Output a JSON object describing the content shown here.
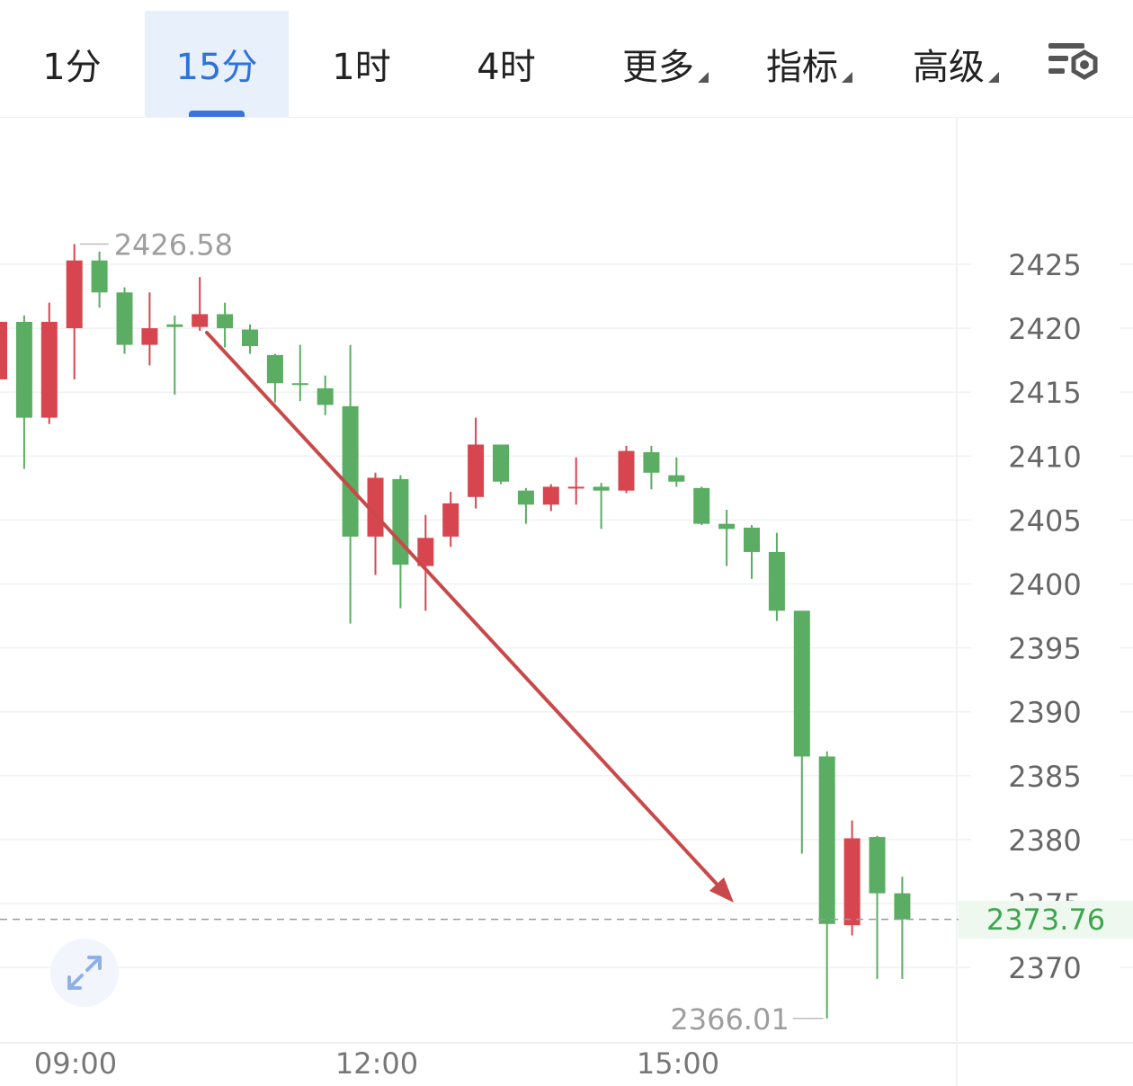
{
  "toolbar": {
    "tabs": [
      {
        "label": "1分"
      },
      {
        "label": "15分"
      },
      {
        "label": "1时"
      },
      {
        "label": "4时"
      },
      {
        "label": "更多"
      },
      {
        "label": "指标"
      },
      {
        "label": "高级"
      }
    ],
    "active_tab": "15分",
    "settings_icon": "chart-settings-icon"
  },
  "chart_data": {
    "type": "candlestick",
    "interval": "15分",
    "x_tick_labels": [
      "09:00",
      "12:00",
      "15:00"
    ],
    "y_tick_labels": [
      "2425",
      "2420",
      "2415",
      "2410",
      "2405",
      "2400",
      "2395",
      "2390",
      "2385",
      "2380",
      "2375",
      "2370"
    ],
    "ylim": [
      2363.5,
      2430
    ],
    "grid": true,
    "colors": {
      "up": "#d7464f",
      "down": "#5aad62",
      "arrow": "#c9494a"
    },
    "annotations": {
      "high_label": "2426.58",
      "high_value": 2426.58,
      "low_label": "2366.01",
      "low_value": 2366.01,
      "current_price_label": "2373.76",
      "current_price": 2373.76
    },
    "candles": [
      {
        "open": 2416,
        "close": 2420.5,
        "high": 2421,
        "low": 2415,
        "dir": "up"
      },
      {
        "open": 2420.5,
        "close": 2413,
        "high": 2421,
        "low": 2409,
        "dir": "down"
      },
      {
        "open": 2413,
        "close": 2420.5,
        "high": 2422,
        "low": 2412.5,
        "dir": "up"
      },
      {
        "open": 2420,
        "close": 2425.3,
        "high": 2426.58,
        "low": 2416,
        "dir": "up"
      },
      {
        "open": 2425.3,
        "close": 2422.8,
        "high": 2426,
        "low": 2421.6,
        "dir": "down"
      },
      {
        "open": 2422.8,
        "close": 2418.7,
        "high": 2423.2,
        "low": 2418,
        "dir": "down"
      },
      {
        "open": 2418.7,
        "close": 2420,
        "high": 2422.8,
        "low": 2417.1,
        "dir": "up"
      },
      {
        "open": 2420.3,
        "close": 2420.1,
        "high": 2421,
        "low": 2414.8,
        "dir": "down"
      },
      {
        "open": 2420.1,
        "close": 2421.1,
        "high": 2424,
        "low": 2419.8,
        "dir": "up"
      },
      {
        "open": 2421.1,
        "close": 2420,
        "high": 2422,
        "low": 2418.5,
        "dir": "down"
      },
      {
        "open": 2419.9,
        "close": 2418.6,
        "high": 2420.3,
        "low": 2418,
        "dir": "down"
      },
      {
        "open": 2417.9,
        "close": 2415.7,
        "high": 2418,
        "low": 2414.2,
        "dir": "down"
      },
      {
        "open": 2415.7,
        "close": 2415.6,
        "high": 2418.7,
        "low": 2414.3,
        "dir": "down"
      },
      {
        "open": 2415.3,
        "close": 2414,
        "high": 2416.3,
        "low": 2413.2,
        "dir": "down"
      },
      {
        "open": 2413.9,
        "close": 2403.7,
        "high": 2418.7,
        "low": 2396.9,
        "dir": "down"
      },
      {
        "open": 2403.7,
        "close": 2408.3,
        "high": 2408.7,
        "low": 2400.7,
        "dir": "up"
      },
      {
        "open": 2408.2,
        "close": 2401.5,
        "high": 2408.5,
        "low": 2398.1,
        "dir": "down"
      },
      {
        "open": 2401.4,
        "close": 2403.6,
        "high": 2405.4,
        "low": 2397.9,
        "dir": "up"
      },
      {
        "open": 2403.7,
        "close": 2406.3,
        "high": 2407.2,
        "low": 2402.9,
        "dir": "up"
      },
      {
        "open": 2406.8,
        "close": 2410.9,
        "high": 2413,
        "low": 2405.9,
        "dir": "up"
      },
      {
        "open": 2410.9,
        "close": 2408,
        "high": 2410.9,
        "low": 2407.8,
        "dir": "down"
      },
      {
        "open": 2407.3,
        "close": 2406.2,
        "high": 2407.5,
        "low": 2404.7,
        "dir": "down"
      },
      {
        "open": 2406.2,
        "close": 2407.6,
        "high": 2407.8,
        "low": 2405.7,
        "dir": "up"
      },
      {
        "open": 2407.6,
        "close": 2407.6,
        "high": 2409.9,
        "low": 2406.2,
        "dir": "up"
      },
      {
        "open": 2407.6,
        "close": 2407.3,
        "high": 2407.9,
        "low": 2404.3,
        "dir": "down"
      },
      {
        "open": 2407.3,
        "close": 2410.4,
        "high": 2410.8,
        "low": 2407.1,
        "dir": "up"
      },
      {
        "open": 2410.3,
        "close": 2408.7,
        "high": 2410.8,
        "low": 2407.4,
        "dir": "down"
      },
      {
        "open": 2408.5,
        "close": 2408,
        "high": 2409.9,
        "low": 2407.6,
        "dir": "down"
      },
      {
        "open": 2407.5,
        "close": 2404.7,
        "high": 2407.6,
        "low": 2404.6,
        "dir": "down"
      },
      {
        "open": 2404.7,
        "close": 2404.3,
        "high": 2405.8,
        "low": 2401.4,
        "dir": "down"
      },
      {
        "open": 2404.4,
        "close": 2402.5,
        "high": 2404.6,
        "low": 2400.4,
        "dir": "down"
      },
      {
        "open": 2402.5,
        "close": 2397.9,
        "high": 2404,
        "low": 2397.1,
        "dir": "down"
      },
      {
        "open": 2397.9,
        "close": 2386.5,
        "high": 2397.9,
        "low": 2378.9,
        "dir": "down"
      },
      {
        "open": 2386.5,
        "close": 2373.4,
        "high": 2386.9,
        "low": 2366.01,
        "dir": "down"
      },
      {
        "open": 2373.3,
        "close": 2380.1,
        "high": 2381.5,
        "low": 2372.5,
        "dir": "up"
      },
      {
        "open": 2380.2,
        "close": 2375.8,
        "high": 2380.3,
        "low": 2369.1,
        "dir": "down"
      },
      {
        "open": 2375.8,
        "close": 2373.76,
        "high": 2377.1,
        "low": 2369.1,
        "dir": "down"
      }
    ]
  }
}
